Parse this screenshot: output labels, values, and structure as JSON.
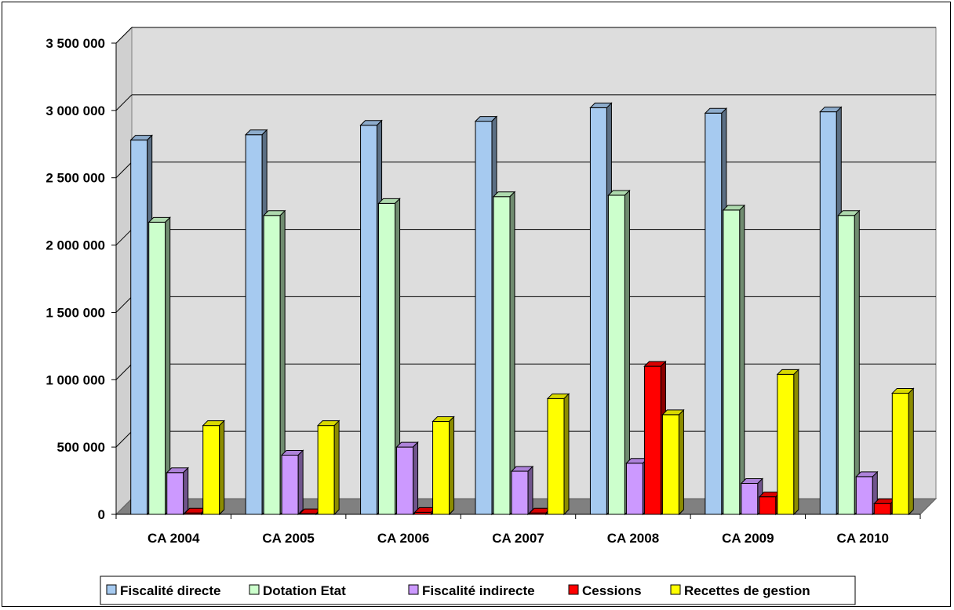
{
  "chart_data": {
    "type": "bar",
    "title": "",
    "xlabel": "",
    "ylabel": "",
    "ylim": [
      0,
      3500000
    ],
    "yticks": [
      0,
      500000,
      1000000,
      1500000,
      2000000,
      2500000,
      3000000,
      3500000
    ],
    "ytick_labels": [
      "0",
      "500 000",
      "1 000 000",
      "1 500 000",
      "2 000 000",
      "2 500 000",
      "3 000 000",
      "3 500 000"
    ],
    "categories": [
      "CA 2004",
      "CA 2005",
      "CA 2006",
      "CA 2007",
      "CA 2008",
      "CA 2009",
      "CA 2010"
    ],
    "series": [
      {
        "name": "Fiscalité directe",
        "color": "#A6CAF0",
        "values": [
          2780000,
          2820000,
          2890000,
          2920000,
          3020000,
          2980000,
          2990000
        ]
      },
      {
        "name": "Dotation Etat",
        "color": "#CCFFCC",
        "values": [
          2170000,
          2220000,
          2310000,
          2360000,
          2370000,
          2260000,
          2220000
        ]
      },
      {
        "name": "Fiscalité indirecte",
        "color": "#CC99FF",
        "values": [
          310000,
          440000,
          500000,
          320000,
          380000,
          230000,
          280000
        ]
      },
      {
        "name": "Cessions",
        "color": "#FF0000",
        "values": [
          10000,
          5000,
          15000,
          10000,
          1100000,
          130000,
          80000
        ]
      },
      {
        "name": "Recettes de gestion",
        "color": "#FFFF00",
        "values": [
          660000,
          660000,
          690000,
          860000,
          740000,
          1040000,
          900000
        ]
      }
    ],
    "grid": true,
    "legend_position": "bottom"
  }
}
